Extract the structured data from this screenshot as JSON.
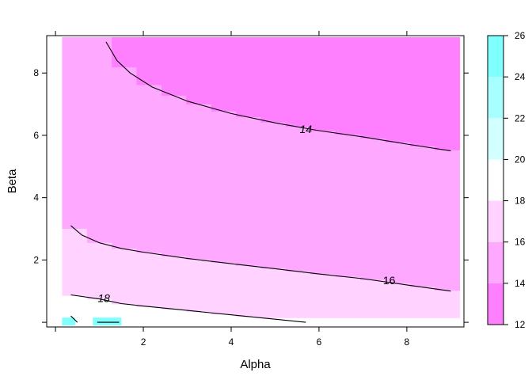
{
  "chart_data": {
    "type": "heatmap",
    "title": "",
    "xlabel": "Alpha",
    "ylabel": "Beta",
    "xlim": [
      -0.2,
      9.3
    ],
    "ylim": [
      -0.15,
      9.2
    ],
    "x_ticks": [
      2,
      4,
      6,
      8
    ],
    "y_ticks": [
      2,
      4,
      6,
      8
    ],
    "x_tick_labels": [
      "2",
      "4",
      "6",
      "8"
    ],
    "y_tick_labels": [
      "2",
      "4",
      "6",
      "8"
    ],
    "data_extent": {
      "x": [
        0.15,
        9.2
      ],
      "y": [
        -0.1,
        9.15
      ]
    },
    "colorbar": {
      "breaks": [
        12,
        14,
        16,
        18,
        20,
        22,
        24,
        26
      ],
      "tick_values": [
        12,
        14,
        16,
        18,
        20,
        22,
        24,
        26
      ],
      "tick_labels": [
        "12",
        "14",
        "16",
        "18",
        "20",
        "22",
        "24",
        "26"
      ],
      "colors": [
        "#ff80ff",
        "#ffa8ff",
        "#ffd2ff",
        "#ffffff",
        "#d2ffff",
        "#a8ffff",
        "#80ffff"
      ]
    },
    "regions": [
      {
        "level_range": [
          12,
          14
        ],
        "color": "#ff80ff",
        "description": "upper-right region above the 14 contour"
      },
      {
        "level_range": [
          14,
          16
        ],
        "color": "#ffa8ff",
        "description": "band between the 14 and 16 contours"
      },
      {
        "level_range": [
          16,
          18
        ],
        "color": "#ffd2ff",
        "description": "band between the 16 and 18 contours"
      },
      {
        "level_range": [
          18,
          20
        ],
        "color": "#ffffff",
        "description": "narrow strip near Beta = 0"
      },
      {
        "level_range": [
          24,
          26
        ],
        "color": "#80ffff",
        "description": "small corners near the origin"
      }
    ],
    "contours": [
      {
        "level": 14,
        "label": "14",
        "label_at": [
          5.7,
          6.2
        ],
        "points": [
          [
            1.15,
            9.0
          ],
          [
            1.4,
            8.4
          ],
          [
            1.7,
            8.0
          ],
          [
            2.2,
            7.55
          ],
          [
            3.0,
            7.1
          ],
          [
            4.0,
            6.7
          ],
          [
            5.0,
            6.4
          ],
          [
            6.0,
            6.15
          ],
          [
            7.0,
            5.95
          ],
          [
            8.0,
            5.72
          ],
          [
            9.0,
            5.5
          ]
        ]
      },
      {
        "level": 16,
        "label": "16",
        "label_at": [
          7.6,
          1.35
        ],
        "points": [
          [
            0.35,
            3.1
          ],
          [
            0.6,
            2.8
          ],
          [
            1.0,
            2.55
          ],
          [
            1.5,
            2.37
          ],
          [
            2.0,
            2.25
          ],
          [
            3.0,
            2.05
          ],
          [
            4.0,
            1.88
          ],
          [
            5.0,
            1.72
          ],
          [
            6.0,
            1.55
          ],
          [
            7.0,
            1.4
          ],
          [
            8.0,
            1.2
          ],
          [
            9.0,
            1.0
          ]
        ]
      },
      {
        "level": 18,
        "label": "18",
        "label_at": [
          1.1,
          0.78
        ],
        "points": [
          [
            0.35,
            0.88
          ],
          [
            1.0,
            0.75
          ],
          [
            1.5,
            0.6
          ],
          [
            2.0,
            0.52
          ],
          [
            3.0,
            0.38
          ],
          [
            4.0,
            0.24
          ],
          [
            5.0,
            0.1
          ],
          [
            5.7,
            0.0
          ]
        ]
      },
      {
        "level": 24,
        "label": "",
        "points": [
          [
            0.35,
            0.2
          ],
          [
            0.5,
            0.0
          ]
        ]
      },
      {
        "level": 24,
        "label": "",
        "points": [
          [
            0.95,
            0.0
          ],
          [
            1.45,
            0.0
          ]
        ]
      }
    ]
  }
}
